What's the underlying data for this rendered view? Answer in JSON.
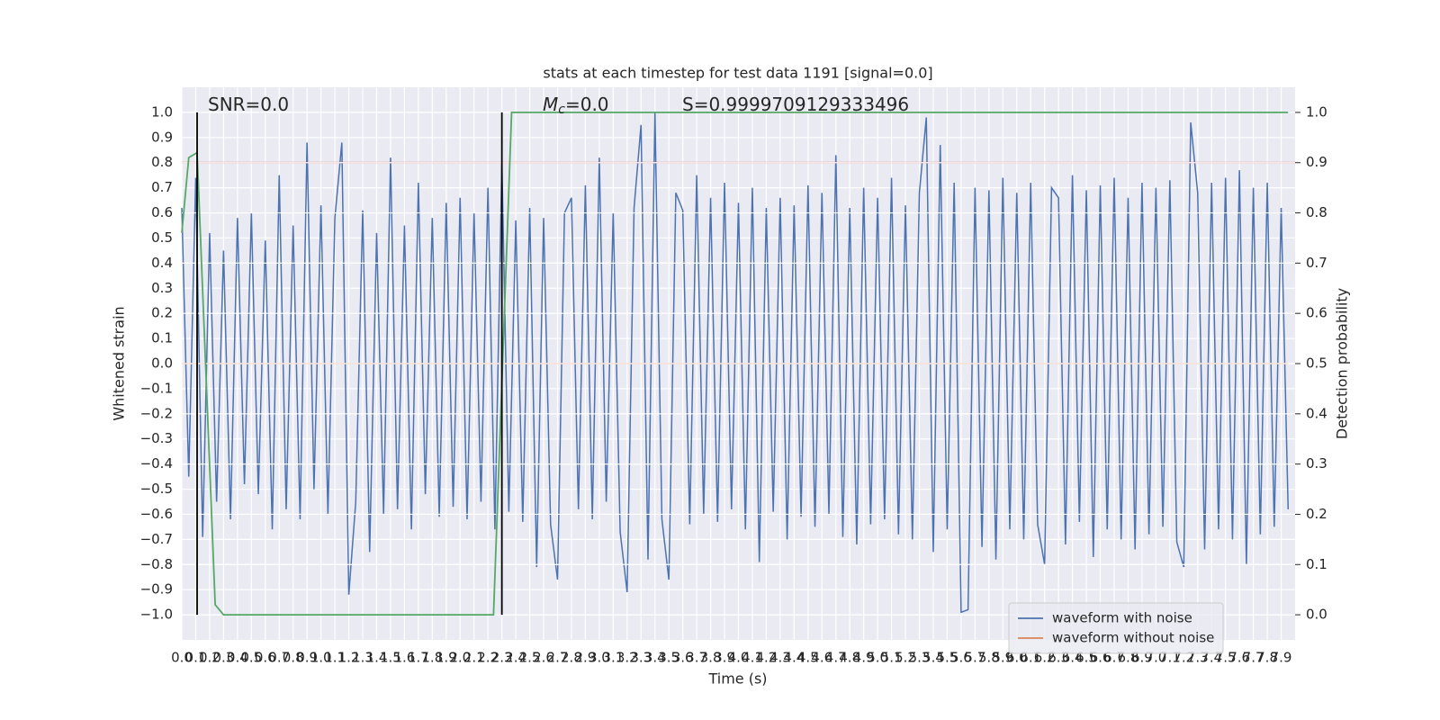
{
  "chart_data": {
    "type": "line",
    "title": "stats at each timestep for test data 1191 [signal=0.0]",
    "xlabel": "Time (s)",
    "ylabel": "Whitened strain",
    "y2label": "Detection probability",
    "annotations": [
      {
        "text": "SNR=0.0"
      },
      {
        "symbol": "M",
        "subscript": "c",
        "text": "=0.0"
      },
      {
        "text": "S=0.9999709129333496"
      }
    ],
    "xlim": [
      0,
      8.0
    ],
    "ylim": [
      -1.1,
      1.1
    ],
    "y2lim": [
      -0.05,
      1.05
    ],
    "grid": true,
    "legend": "lower right",
    "xticks": [
      {
        "value": 0,
        "label": "0.0"
      },
      0.1,
      0.2,
      0.3,
      0.4,
      0.5,
      0.6,
      0.7,
      0.8,
      0.9,
      {
        "value": 1,
        "label": "1.0"
      },
      1.1,
      1.2,
      1.3,
      1.4,
      1.5,
      1.6,
      1.7,
      1.8,
      1.9,
      {
        "value": 2,
        "label": "2.0"
      },
      2.1,
      2.2,
      2.3,
      2.4,
      2.5,
      2.6,
      2.7,
      2.8,
      2.9,
      {
        "value": 3,
        "label": "3.0"
      },
      3.1,
      3.2,
      3.3,
      3.4,
      3.5,
      3.6,
      3.7,
      3.8,
      3.9,
      {
        "value": 4,
        "label": "4.0"
      },
      4.1,
      4.2,
      4.3,
      4.4,
      4.5,
      4.6,
      4.7,
      4.8,
      4.9,
      {
        "value": 5,
        "label": "5.0"
      },
      5.1,
      5.2,
      5.3,
      5.4,
      5.5,
      5.6,
      5.7,
      5.8,
      5.9,
      {
        "value": 6,
        "label": "6.0"
      },
      6.1,
      6.2,
      6.3,
      6.4,
      6.5,
      6.6,
      6.7,
      6.8,
      6.9,
      {
        "value": 7,
        "label": "7.0"
      },
      7.1,
      7.2,
      7.3,
      7.4,
      7.5,
      7.6,
      7.7,
      7.8,
      7.9
    ],
    "yticks": [
      {
        "value": -1,
        "label": "−1.0"
      },
      {
        "value": -0.9,
        "label": "−0.9"
      },
      {
        "value": -0.8,
        "label": "−0.8"
      },
      {
        "value": -0.7,
        "label": "−0.7"
      },
      {
        "value": -0.6,
        "label": "−0.6"
      },
      {
        "value": -0.5,
        "label": "−0.5"
      },
      {
        "value": -0.4,
        "label": "−0.4"
      },
      {
        "value": -0.3,
        "label": "−0.3"
      },
      {
        "value": -0.2,
        "label": "−0.2"
      },
      {
        "value": -0.1,
        "label": "−0.1"
      },
      {
        "value": 0,
        "label": "0.0"
      },
      0.1,
      0.2,
      0.3,
      0.4,
      0.5,
      0.6,
      0.7,
      0.8,
      0.9,
      {
        "value": 1,
        "label": "1.0"
      }
    ],
    "y2ticks": [
      {
        "value": 0,
        "label": "0.0"
      },
      0.1,
      0.2,
      0.3,
      0.4,
      0.5,
      0.6,
      0.7,
      0.8,
      0.9,
      {
        "value": 1,
        "label": "1.0"
      }
    ],
    "series": [
      {
        "name": "waveform with noise",
        "color": "#4c72b0",
        "x": [
          0,
          0.05,
          0.1,
          0.15,
          0.2,
          0.25,
          0.3,
          0.35,
          0.4,
          0.45,
          0.5,
          0.55,
          0.6,
          0.65,
          0.7,
          0.75,
          0.8,
          0.85,
          0.9,
          0.95,
          1,
          1.05,
          1.1,
          1.15,
          1.2,
          1.25,
          1.3,
          1.35,
          1.4,
          1.45,
          1.5,
          1.55,
          1.6,
          1.65,
          1.7,
          1.75,
          1.8,
          1.85,
          1.9,
          1.95,
          2,
          2.05,
          2.1,
          2.15,
          2.2,
          2.25,
          2.3,
          2.35,
          2.4,
          2.45,
          2.5,
          2.55,
          2.6,
          2.65,
          2.7,
          2.75,
          2.8,
          2.85,
          2.9,
          2.95,
          3,
          3.05,
          3.1,
          3.15,
          3.2,
          3.25,
          3.3,
          3.35,
          3.4,
          3.45,
          3.5,
          3.55,
          3.6,
          3.65,
          3.7,
          3.75,
          3.8,
          3.85,
          3.9,
          3.95,
          4,
          4.05,
          4.1,
          4.15,
          4.2,
          4.25,
          4.3,
          4.35,
          4.4,
          4.45,
          4.5,
          4.55,
          4.6,
          4.65,
          4.7,
          4.75,
          4.8,
          4.85,
          4.9,
          4.95,
          5,
          5.05,
          5.1,
          5.15,
          5.2,
          5.25,
          5.3,
          5.35,
          5.4,
          5.45,
          5.5,
          5.55,
          5.6,
          5.65,
          5.7,
          5.75,
          5.8,
          5.85,
          5.9,
          5.95,
          6,
          6.05,
          6.1,
          6.15,
          6.2,
          6.25,
          6.3,
          6.35,
          6.4,
          6.45,
          6.5,
          6.55,
          6.6,
          6.65,
          6.7,
          6.75,
          6.8,
          6.85,
          6.9,
          6.95,
          7,
          7.05,
          7.1,
          7.15,
          7.2,
          7.25,
          7.3,
          7.35,
          7.4,
          7.45,
          7.5,
          7.55,
          7.6,
          7.65,
          7.7,
          7.75,
          7.8,
          7.85,
          7.9,
          7.95
        ],
        "values": [
          0.62,
          -0.45,
          0.74,
          -0.69,
          0.52,
          -0.55,
          0.45,
          -0.62,
          0.58,
          -0.48,
          0.6,
          -0.52,
          0.49,
          -0.66,
          0.75,
          -0.58,
          0.55,
          -0.62,
          0.88,
          -0.5,
          0.63,
          -0.6,
          0.58,
          0.88,
          -0.92,
          -0.55,
          0.61,
          -0.75,
          0.52,
          -0.6,
          0.82,
          -0.58,
          0.55,
          -0.66,
          0.72,
          -0.52,
          0.58,
          -0.61,
          0.64,
          -0.57,
          0.66,
          -0.62,
          0.6,
          -0.55,
          0.7,
          -0.66,
          0.8,
          -0.59,
          0.57,
          -0.63,
          0.62,
          -0.81,
          0.58,
          -0.64,
          -0.86,
          0.6,
          0.66,
          -0.58,
          0.71,
          -0.62,
          0.82,
          -0.55,
          0.6,
          -0.67,
          -0.91,
          0.62,
          0.95,
          -0.78,
          1.0,
          -0.62,
          -0.86,
          0.68,
          0.61,
          -0.64,
          0.75,
          -0.6,
          0.66,
          -0.63,
          0.72,
          -0.58,
          0.64,
          -0.66,
          0.7,
          -0.79,
          0.62,
          -0.59,
          0.66,
          -0.7,
          0.63,
          -0.61,
          0.71,
          -0.65,
          0.68,
          -0.6,
          0.83,
          -0.69,
          0.62,
          -0.72,
          0.7,
          -0.64,
          0.66,
          -0.62,
          0.74,
          -0.68,
          0.63,
          -0.7,
          0.68,
          0.98,
          -0.75,
          0.87,
          -0.66,
          0.72,
          -0.99,
          -0.98,
          0.7,
          -0.73,
          0.69,
          -0.78,
          0.74,
          -0.66,
          0.68,
          -0.7,
          0.72,
          -0.64,
          -0.8,
          0.7,
          0.66,
          -0.72,
          0.75,
          -0.63,
          0.69,
          -0.77,
          0.71,
          -0.66,
          0.74,
          -0.7,
          0.66,
          -0.74,
          0.72,
          -0.68,
          0.7,
          -0.65,
          0.73,
          -0.71,
          -0.81,
          0.96,
          0.68,
          -0.74,
          0.72,
          -0.66,
          0.74,
          -0.7,
          0.77,
          -0.8,
          0.7,
          -0.68,
          0.72,
          -0.65,
          0.62,
          -0.58
        ]
      },
      {
        "name": "waveform without noise",
        "color": "#dd8452",
        "x": [
          0,
          7.95
        ],
        "values": [
          0,
          0
        ]
      },
      {
        "color": "#55a868",
        "axis": "y2",
        "x": [
          0,
          0.05,
          0.11,
          0.24,
          0.3,
          2.24,
          2.37,
          7.95
        ],
        "values": [
          0.76,
          0.91,
          0.92,
          0.02,
          0,
          0,
          1,
          1
        ]
      }
    ],
    "hlines": [
      {
        "value": 0.8,
        "color": "#c44e52"
      }
    ],
    "vlines": [
      {
        "x": 0.11,
        "y": [
          -1,
          1
        ],
        "color": "#000000"
      },
      {
        "x": 2.3,
        "y": [
          -1,
          1
        ],
        "color": "#000000"
      }
    ]
  }
}
